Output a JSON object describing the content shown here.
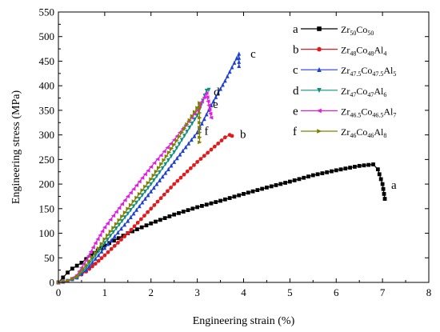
{
  "chart_data": {
    "type": "line",
    "xlabel": "Engineering strain (%)",
    "ylabel": "Engineering stress (MPa)",
    "xlim": [
      0,
      8
    ],
    "ylim": [
      0,
      550
    ],
    "x_ticks": [
      "0",
      "1",
      "2",
      "3",
      "4",
      "5",
      "6",
      "7",
      "8"
    ],
    "y_ticks": [
      "0",
      "50",
      "100",
      "150",
      "200",
      "250",
      "300",
      "350",
      "400",
      "450",
      "500",
      "550"
    ],
    "legend_position": "top-right",
    "series": [
      {
        "key": "a",
        "label_parts": [
          [
            "Zr",
            false
          ],
          [
            "50",
            true
          ],
          [
            "Co",
            false
          ],
          [
            "50",
            true
          ]
        ],
        "color": "#000000",
        "marker": "square",
        "end_label": "a",
        "points": [
          [
            0,
            0
          ],
          [
            0.1,
            10
          ],
          [
            0.2,
            20
          ],
          [
            0.3,
            28
          ],
          [
            0.5,
            40
          ],
          [
            0.7,
            55
          ],
          [
            1,
            75
          ],
          [
            1.5,
            100
          ],
          [
            2,
            120
          ],
          [
            2.5,
            138
          ],
          [
            3,
            153
          ],
          [
            3.5,
            166
          ],
          [
            4,
            180
          ],
          [
            4.5,
            193
          ],
          [
            5,
            205
          ],
          [
            5.5,
            218
          ],
          [
            6,
            228
          ],
          [
            6.5,
            237
          ],
          [
            6.8,
            240
          ],
          [
            6.9,
            230
          ],
          [
            7,
            200
          ],
          [
            7.05,
            170
          ]
        ]
      },
      {
        "key": "b",
        "label_parts": [
          [
            "Zr",
            false
          ],
          [
            "48",
            true
          ],
          [
            "Co",
            false
          ],
          [
            "48",
            true
          ],
          [
            "Al",
            false
          ],
          [
            "4",
            true
          ]
        ],
        "color": "#e31a1c",
        "marker": "circle",
        "end_label": "b",
        "points": [
          [
            0,
            0
          ],
          [
            0.2,
            3
          ],
          [
            0.4,
            10
          ],
          [
            0.6,
            22
          ],
          [
            0.8,
            38
          ],
          [
            1,
            55
          ],
          [
            1.5,
            100
          ],
          [
            2,
            150
          ],
          [
            2.5,
            200
          ],
          [
            3,
            245
          ],
          [
            3.3,
            270
          ],
          [
            3.6,
            295
          ],
          [
            3.7,
            300
          ],
          [
            3.75,
            298
          ]
        ]
      },
      {
        "key": "c",
        "label_parts": [
          [
            "Zr",
            false
          ],
          [
            "47.5",
            true
          ],
          [
            "Co",
            false
          ],
          [
            "47.5",
            true
          ],
          [
            "Al",
            false
          ],
          [
            "5",
            true
          ]
        ],
        "color": "#1f3fd6",
        "marker": "triangle-up",
        "end_label": "c",
        "points": [
          [
            0,
            0
          ],
          [
            0.2,
            3
          ],
          [
            0.4,
            10
          ],
          [
            0.6,
            25
          ],
          [
            0.8,
            48
          ],
          [
            1,
            70
          ],
          [
            1.5,
            125
          ],
          [
            2,
            185
          ],
          [
            2.5,
            245
          ],
          [
            3,
            305
          ],
          [
            3.3,
            360
          ],
          [
            3.6,
            410
          ],
          [
            3.9,
            465
          ],
          [
            3.9,
            440
          ]
        ]
      },
      {
        "key": "d",
        "label_parts": [
          [
            "Zr",
            false
          ],
          [
            "47",
            true
          ],
          [
            "Co",
            false
          ],
          [
            "47",
            true
          ],
          [
            "Al",
            false
          ],
          [
            "6",
            true
          ]
        ],
        "color": "#0f8f7f",
        "marker": "triangle-down",
        "end_label": "d",
        "points": [
          [
            0,
            0
          ],
          [
            0.2,
            3
          ],
          [
            0.4,
            10
          ],
          [
            0.6,
            30
          ],
          [
            0.8,
            55
          ],
          [
            1,
            80
          ],
          [
            1.5,
            140
          ],
          [
            2,
            200
          ],
          [
            2.5,
            265
          ],
          [
            3,
            340
          ],
          [
            3.2,
            390
          ],
          [
            3.25,
            392
          ]
        ]
      },
      {
        "key": "e",
        "label_parts": [
          [
            "Zr",
            false
          ],
          [
            "46.5",
            true
          ],
          [
            "Co",
            false
          ],
          [
            "46.5",
            true
          ],
          [
            "Al",
            false
          ],
          [
            "7",
            true
          ]
        ],
        "color": "#e01ee0",
        "marker": "triangle-left",
        "end_label": "e",
        "points": [
          [
            0,
            0
          ],
          [
            0.2,
            3
          ],
          [
            0.4,
            15
          ],
          [
            0.6,
            45
          ],
          [
            0.8,
            80
          ],
          [
            1,
            112
          ],
          [
            1.5,
            175
          ],
          [
            2,
            235
          ],
          [
            2.5,
            290
          ],
          [
            3,
            350
          ],
          [
            3.2,
            385
          ],
          [
            3.25,
            360
          ],
          [
            3.3,
            335
          ]
        ]
      },
      {
        "key": "f",
        "label_parts": [
          [
            "Zr",
            false
          ],
          [
            "46",
            true
          ],
          [
            "Co",
            false
          ],
          [
            "46",
            true
          ],
          [
            "Al",
            false
          ],
          [
            "8",
            true
          ]
        ],
        "color": "#808000",
        "marker": "triangle-right",
        "end_label": "f",
        "points": [
          [
            0,
            0
          ],
          [
            0.2,
            3
          ],
          [
            0.4,
            12
          ],
          [
            0.6,
            35
          ],
          [
            0.8,
            60
          ],
          [
            1,
            88
          ],
          [
            1.5,
            150
          ],
          [
            2,
            210
          ],
          [
            2.5,
            280
          ],
          [
            3,
            355
          ],
          [
            3.05,
            365
          ],
          [
            3.05,
            285
          ]
        ]
      }
    ]
  }
}
